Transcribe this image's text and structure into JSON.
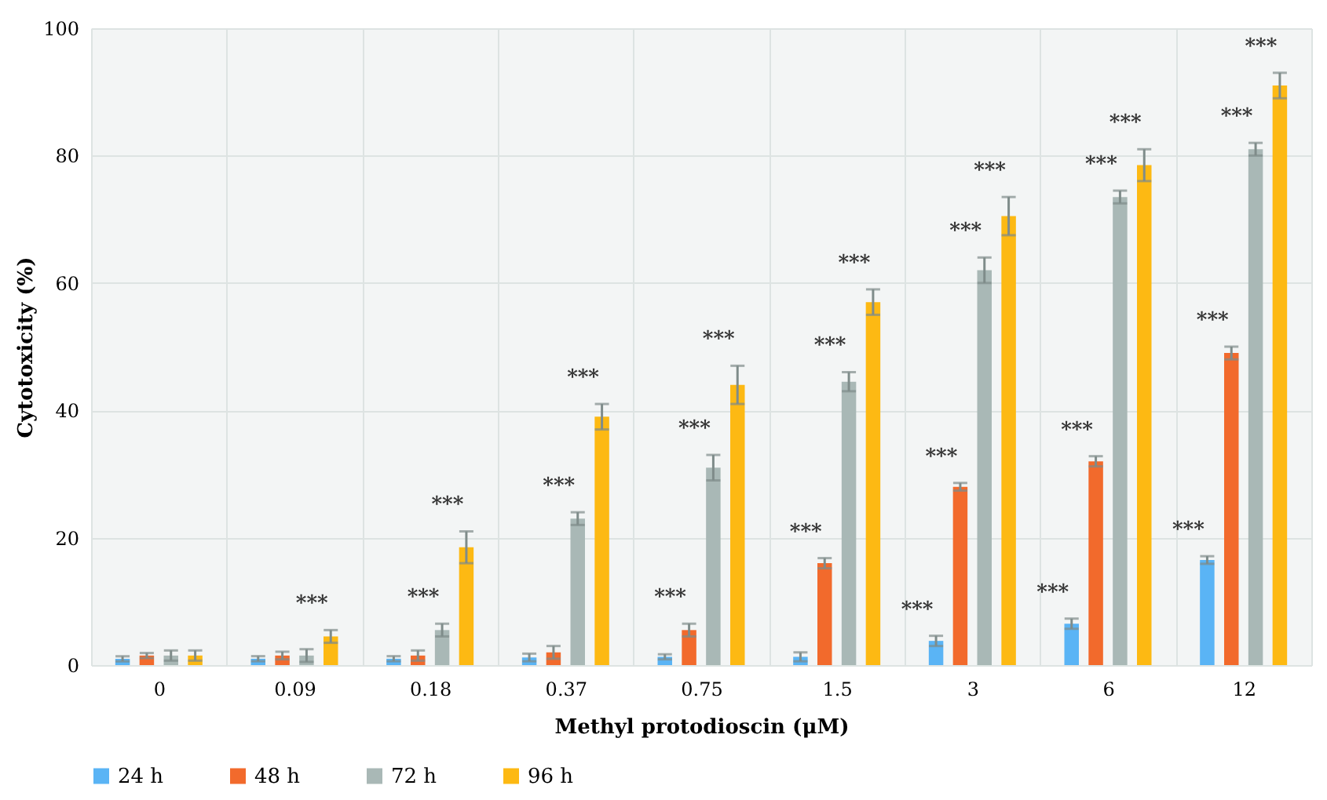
{
  "chart_data": {
    "type": "bar",
    "xlabel": "Methyl protodioscin (μM)",
    "ylabel": "Cytotoxicity (%)",
    "categories": [
      "0",
      "0.09",
      "0.18",
      "0.37",
      "0.75",
      "1.5",
      "3",
      "6",
      "12"
    ],
    "series": [
      {
        "name": "24 h",
        "color": "#5ab4f5",
        "values": [
          1,
          1,
          1,
          1.2,
          1.3,
          1.3,
          3.8,
          6.5,
          16.5
        ],
        "errors": [
          0.4,
          0.4,
          0.4,
          0.6,
          0.4,
          0.7,
          0.8,
          0.8,
          0.6
        ],
        "value_labels": [
          null,
          null,
          null,
          null,
          null,
          null,
          "***",
          "***",
          "***"
        ]
      },
      {
        "name": "48 h",
        "color": "#f26a2c",
        "values": [
          1.5,
          1.5,
          1.5,
          2,
          5.5,
          16,
          28,
          32,
          49
        ],
        "errors": [
          0.4,
          0.6,
          0.8,
          1,
          1,
          0.8,
          0.6,
          0.8,
          1
        ],
        "value_labels": [
          null,
          null,
          null,
          null,
          "***",
          "***",
          "***",
          "***",
          "***"
        ]
      },
      {
        "name": "72 h",
        "color": "#a9b8b6",
        "values": [
          1.5,
          1.5,
          5.5,
          23,
          31,
          44.5,
          62,
          73.5,
          81
        ],
        "errors": [
          0.8,
          1,
          1,
          1,
          2,
          1.5,
          2,
          1,
          1
        ],
        "value_labels": [
          null,
          null,
          "***",
          "***",
          "***",
          "***",
          "***",
          "***",
          "***"
        ]
      },
      {
        "name": "96 h",
        "color": "#fdb913",
        "values": [
          1.5,
          4.5,
          18.5,
          39,
          44,
          57,
          70.5,
          78.5,
          91
        ],
        "errors": [
          0.8,
          1,
          2.5,
          2,
          3,
          2,
          3,
          2.5,
          2
        ],
        "value_labels": [
          null,
          "***",
          "***",
          "***",
          "***",
          "***",
          "***",
          "***",
          "***"
        ]
      }
    ],
    "ylim": [
      0,
      100
    ],
    "yticks": [
      0,
      20,
      40,
      60,
      80,
      100
    ],
    "grid": true,
    "legend": "bottom"
  }
}
